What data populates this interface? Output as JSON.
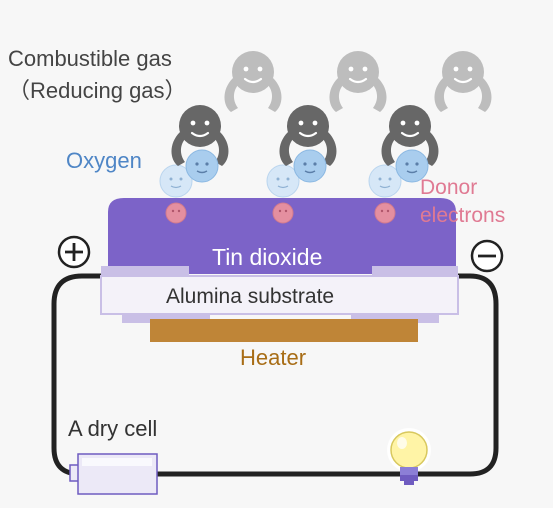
{
  "labels": {
    "combustible_gas": "Combustible gas",
    "reducing_gas": "（Reducing gas）",
    "oxygen": "Oxygen",
    "donor": "Donor",
    "electrons": "electrons",
    "tin_dioxide": "Tin dioxide",
    "alumina_substrate": "Alumina substrate",
    "heater": "Heater",
    "dry_cell": "A dry cell"
  },
  "colors": {
    "tin_dioxide": "#7c63c8",
    "electrode": "#c9bfe6",
    "substrate": "#f3f1f8",
    "heater": "#bf8537",
    "wire": "#222222",
    "gas_faded": "#bcbcbc",
    "gas_dark": "#666666",
    "oxygen": "#9cc7ec",
    "electron": "#e9a2ad",
    "bulb": "#fff5a8"
  },
  "icons": [
    "plus-terminal-icon",
    "minus-terminal-icon",
    "light-bulb-icon",
    "battery-icon"
  ]
}
